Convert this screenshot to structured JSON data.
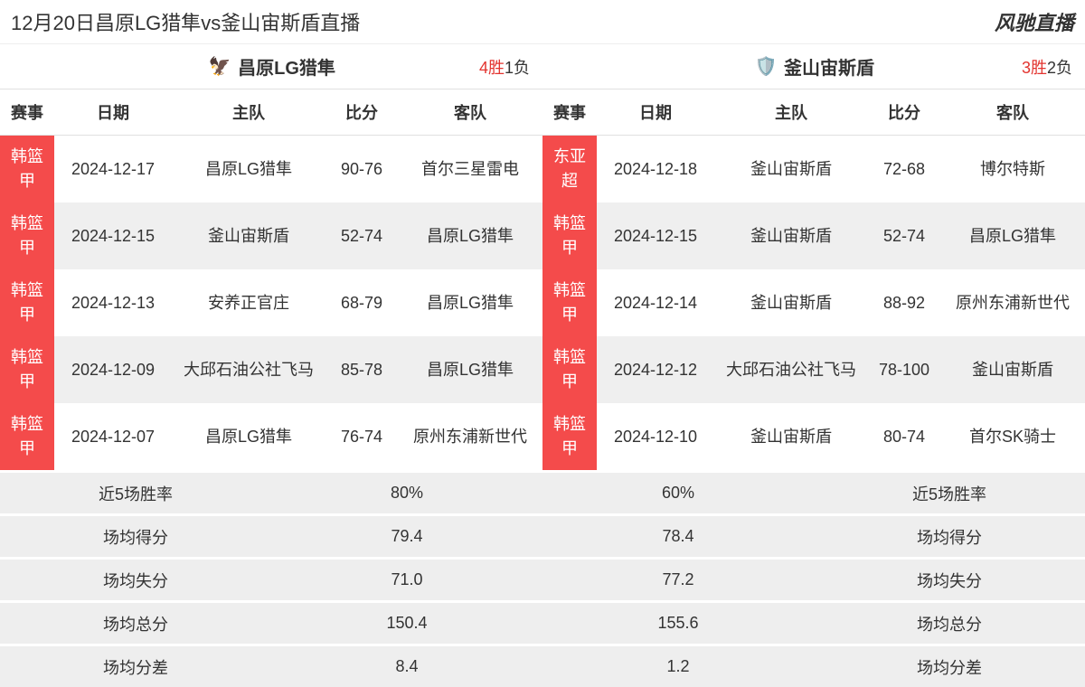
{
  "header": {
    "title": "12月20日昌原LG猎隼vs釜山宙斯盾直播",
    "brand": "风驰直播"
  },
  "colors": {
    "league_badge_bg": "#f44b4b",
    "league_badge_text": "#ffffff",
    "win_text": "#e3342f",
    "lose_text": "#333333",
    "row_alt_bg": "#efefef",
    "stats_bg": "#eeeeee"
  },
  "columns": [
    "赛事",
    "日期",
    "主队",
    "比分",
    "客队"
  ],
  "left": {
    "team_name": "昌原LG猎隼",
    "logo_emoji": "🦅",
    "record_wins": "4胜",
    "record_losses": "1负",
    "rows": [
      {
        "league": "韩篮甲",
        "date": "2024-12-17",
        "home": "昌原LG猎隼",
        "score": "90-76",
        "away": "首尔三星雷电"
      },
      {
        "league": "韩篮甲",
        "date": "2024-12-15",
        "home": "釜山宙斯盾",
        "score": "52-74",
        "away": "昌原LG猎隼"
      },
      {
        "league": "韩篮甲",
        "date": "2024-12-13",
        "home": "安养正官庄",
        "score": "68-79",
        "away": "昌原LG猎隼"
      },
      {
        "league": "韩篮甲",
        "date": "2024-12-09",
        "home": "大邱石油公社飞马",
        "score": "85-78",
        "away": "昌原LG猎隼"
      },
      {
        "league": "韩篮甲",
        "date": "2024-12-07",
        "home": "昌原LG猎隼",
        "score": "76-74",
        "away": "原州东浦新世代"
      }
    ]
  },
  "right": {
    "team_name": "釜山宙斯盾",
    "logo_emoji": "🛡️",
    "record_wins": "3胜",
    "record_losses": "2负",
    "rows": [
      {
        "league": "东亚超",
        "date": "2024-12-18",
        "home": "釜山宙斯盾",
        "score": "72-68",
        "away": "博尔特斯"
      },
      {
        "league": "韩篮甲",
        "date": "2024-12-15",
        "home": "釜山宙斯盾",
        "score": "52-74",
        "away": "昌原LG猎隼"
      },
      {
        "league": "韩篮甲",
        "date": "2024-12-14",
        "home": "釜山宙斯盾",
        "score": "88-92",
        "away": "原州东浦新世代"
      },
      {
        "league": "韩篮甲",
        "date": "2024-12-12",
        "home": "大邱石油公社飞马",
        "score": "78-100",
        "away": "釜山宙斯盾"
      },
      {
        "league": "韩篮甲",
        "date": "2024-12-10",
        "home": "釜山宙斯盾",
        "score": "80-74",
        "away": "首尔SK骑士"
      }
    ]
  },
  "stats": {
    "labels": {
      "winrate": "近5场胜率",
      "ppg": "场均得分",
      "papg": "场均失分",
      "total": "场均总分",
      "diff": "场均分差"
    },
    "left_values": {
      "winrate": "80%",
      "ppg": "79.4",
      "papg": "71.0",
      "total": "150.4",
      "diff": "8.4"
    },
    "right_values": {
      "winrate": "60%",
      "ppg": "78.4",
      "papg": "77.2",
      "total": "155.6",
      "diff": "1.2"
    }
  }
}
